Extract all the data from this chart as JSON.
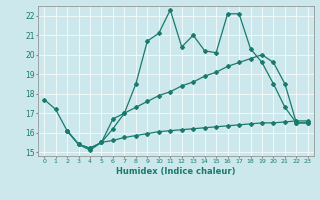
{
  "xlabel": "Humidex (Indice chaleur)",
  "xlim": [
    -0.5,
    23.5
  ],
  "ylim": [
    14.8,
    22.5
  ],
  "xticks": [
    0,
    1,
    2,
    3,
    4,
    5,
    6,
    7,
    8,
    9,
    10,
    11,
    12,
    13,
    14,
    15,
    16,
    17,
    18,
    19,
    20,
    21,
    22,
    23
  ],
  "yticks": [
    15,
    16,
    17,
    18,
    19,
    20,
    21,
    22
  ],
  "bg_color": "#cce8ec",
  "line_color": "#1a7a6e",
  "grid_color": "#b0d8dc",
  "line1_x": [
    0,
    1,
    2,
    3,
    4,
    5,
    6,
    7,
    8,
    9,
    10,
    11,
    12,
    13,
    14,
    15,
    16,
    17,
    18,
    19,
    20,
    21,
    22,
    23
  ],
  "line1_y": [
    17.7,
    17.2,
    16.1,
    15.4,
    15.1,
    15.5,
    16.7,
    17.0,
    18.5,
    20.7,
    21.1,
    22.3,
    20.4,
    21.0,
    20.2,
    20.1,
    22.1,
    22.1,
    20.3,
    19.6,
    18.5,
    17.3,
    16.5,
    16.5
  ],
  "line2_x": [
    2,
    3,
    4,
    5,
    6,
    7,
    8,
    9,
    10,
    11,
    12,
    13,
    14,
    15,
    16,
    17,
    18,
    19,
    20,
    21,
    22,
    23
  ],
  "line2_y": [
    16.1,
    15.4,
    15.2,
    15.5,
    16.2,
    17.0,
    17.3,
    17.6,
    17.9,
    18.1,
    18.4,
    18.6,
    18.9,
    19.1,
    19.4,
    19.6,
    19.8,
    20.0,
    19.6,
    18.5,
    16.5,
    16.5
  ],
  "line3_x": [
    2,
    3,
    4,
    5,
    6,
    7,
    8,
    9,
    10,
    11,
    12,
    13,
    14,
    15,
    16,
    17,
    18,
    19,
    20,
    21,
    22,
    23
  ],
  "line3_y": [
    16.1,
    15.4,
    15.2,
    15.5,
    15.6,
    15.75,
    15.85,
    15.95,
    16.05,
    16.1,
    16.15,
    16.2,
    16.25,
    16.3,
    16.35,
    16.4,
    16.45,
    16.5,
    16.5,
    16.55,
    16.6,
    16.6
  ]
}
